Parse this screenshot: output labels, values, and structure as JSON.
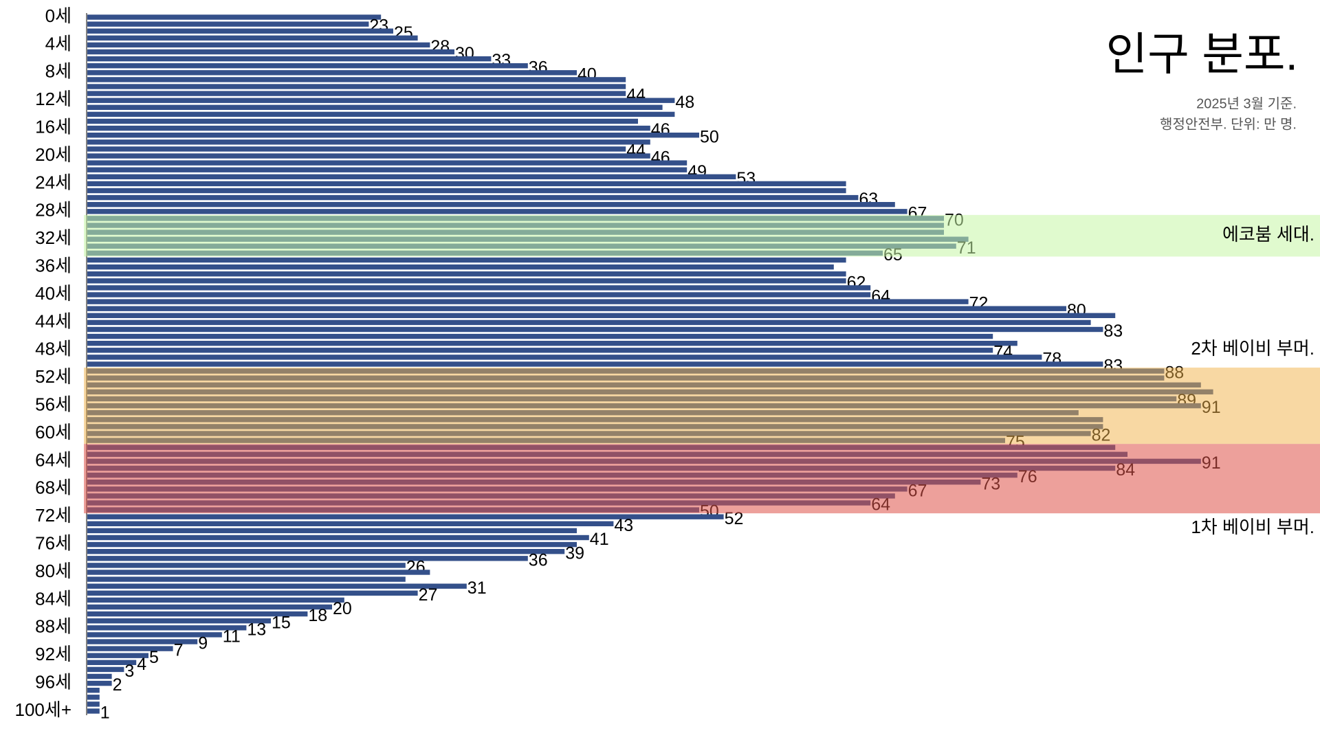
{
  "chart_data": {
    "type": "barh",
    "title": "인구 분포.",
    "subtitle": [
      "2025년 3월 기준.",
      "행정안전부. 단위: 만 명."
    ],
    "color": "#34508a",
    "categories": [
      "0세",
      null,
      null,
      null,
      "4세",
      null,
      null,
      null,
      "8세",
      null,
      null,
      null,
      "12세",
      null,
      null,
      null,
      "16세",
      null,
      null,
      null,
      "20세",
      null,
      null,
      null,
      "24세",
      null,
      null,
      null,
      "28세",
      null,
      null,
      null,
      "32세",
      null,
      null,
      null,
      "36세",
      null,
      null,
      null,
      "40세",
      null,
      null,
      null,
      "44세",
      null,
      null,
      null,
      "48세",
      null,
      null,
      null,
      "52세",
      null,
      null,
      null,
      "56세",
      null,
      null,
      null,
      "60세",
      null,
      null,
      null,
      "64세",
      null,
      null,
      null,
      "68세",
      null,
      null,
      null,
      "72세",
      null,
      null,
      null,
      "76세",
      null,
      null,
      null,
      "80세",
      null,
      null,
      null,
      "84세",
      null,
      null,
      null,
      "88세",
      null,
      null,
      null,
      "92세",
      null,
      null,
      null,
      "96세",
      null,
      null,
      null,
      "100세+"
    ],
    "values": [
      24,
      23,
      25,
      27,
      28,
      30,
      33,
      36,
      40,
      44,
      44,
      44,
      48,
      47,
      48,
      45,
      46,
      50,
      46,
      44,
      46,
      49,
      49,
      53,
      62,
      62,
      63,
      66,
      67,
      70,
      70,
      70,
      72,
      71,
      65,
      62,
      61,
      62,
      62,
      64,
      64,
      72,
      80,
      84,
      82,
      83,
      74,
      76,
      74,
      78,
      83,
      88,
      88,
      91,
      92,
      89,
      91,
      81,
      83,
      83,
      82,
      75,
      84,
      85,
      91,
      84,
      76,
      73,
      67,
      66,
      64,
      50,
      52,
      43,
      40,
      41,
      40,
      39,
      36,
      26,
      28,
      26,
      31,
      27,
      21,
      20,
      18,
      15,
      13,
      11,
      9,
      7,
      5,
      4,
      3,
      2,
      2,
      1,
      1,
      1,
      1
    ],
    "value_labels": [
      null,
      "23",
      "25",
      null,
      "28",
      "30",
      "33",
      "36",
      "40",
      null,
      null,
      "44",
      "48",
      null,
      null,
      null,
      "46",
      "50",
      null,
      "44",
      "46",
      null,
      "49",
      "53",
      null,
      null,
      "63",
      null,
      "67",
      "70",
      null,
      null,
      null,
      "71",
      "65",
      null,
      null,
      null,
      "62",
      null,
      "64",
      "72",
      "80",
      null,
      null,
      "83",
      null,
      null,
      "74",
      "78",
      "83",
      "88",
      null,
      null,
      null,
      "89",
      "91",
      null,
      null,
      null,
      "82",
      "75",
      null,
      null,
      "91",
      "84",
      "76",
      "73",
      "67",
      null,
      "64",
      "50",
      "52",
      "43",
      null,
      "41",
      null,
      "39",
      "36",
      "26",
      null,
      null,
      "31",
      "27",
      null,
      "20",
      "18",
      "15",
      "13",
      "11",
      "9",
      "7",
      "5",
      "4",
      "3",
      null,
      "2",
      null,
      null,
      null,
      "1"
    ],
    "highlights": [
      {
        "label": "에코붐 세대.",
        "start": 29,
        "end": 34,
        "color": "rgba(198,245,165,0.55)"
      },
      {
        "label": "2차 베이비 부머.",
        "start": 51,
        "end": 61,
        "color": "rgba(242,178,72,0.5)"
      },
      {
        "label": "1차 베이비 부머.",
        "start": 62,
        "end": 71,
        "color": "rgba(222,82,72,0.55)"
      }
    ]
  }
}
